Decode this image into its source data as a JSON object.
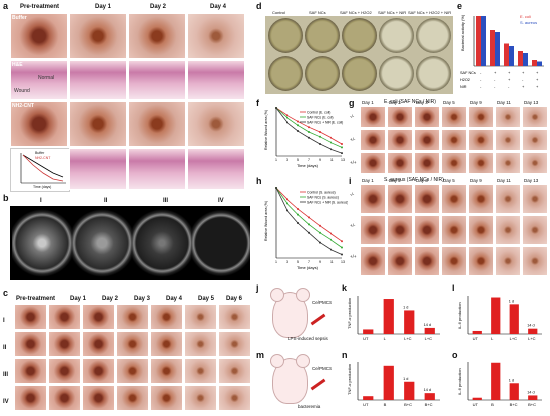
{
  "panel_labels": {
    "a": "a",
    "b": "b",
    "c": "c",
    "d": "d",
    "e": "e",
    "f": "f",
    "g": "g",
    "h": "h",
    "i": "i",
    "j": "j",
    "k": "k",
    "l": "l",
    "m": "m",
    "n": "n",
    "o": "o"
  },
  "panel_a": {
    "cols": [
      "Pre-treatment",
      "Day 1",
      "Day 2",
      "Day 4"
    ],
    "rows": [
      "Buffer",
      "H&E",
      "NH2-CNT"
    ],
    "he_labels": {
      "normal": "Normal",
      "wound": "Wound"
    },
    "inset": {
      "ylabel": "Wound area (%)",
      "xlabel": "Time (days)",
      "legend": [
        "Buffer",
        "NH2-CNT"
      ]
    }
  },
  "panel_b": {
    "labels": [
      "I",
      "II",
      "III",
      "IV"
    ]
  },
  "panel_c": {
    "cols": [
      "Pre-treatment",
      "Day 1",
      "Day 2",
      "Day 3",
      "Day 4",
      "Day 5",
      "Day 6"
    ],
    "rows": [
      "I",
      "II",
      "III",
      "IV"
    ]
  },
  "panel_d": {
    "cols": [
      "Control",
      "SAF NCs",
      "SAF NCs + H2O2",
      "SAF NCs + NIR",
      "SAF NCs + H2O2 + NIR"
    ]
  },
  "panel_e": {
    "ylabel": "Bacterial activity (%)",
    "legend": [
      "E. coli",
      "S. aureus"
    ],
    "row_labels": [
      "SAF NCs",
      "H2O2",
      "NIR"
    ],
    "marks": [
      [
        "-",
        "+",
        "+",
        "+",
        "+"
      ],
      [
        "-",
        "-",
        "+",
        "-",
        "+"
      ],
      [
        "-",
        "-",
        "-",
        "+",
        "+"
      ]
    ],
    "ecoli": [
      100,
      72,
      45,
      30,
      12
    ],
    "saureus": [
      100,
      68,
      40,
      26,
      9
    ]
  },
  "panel_f": {
    "ylabel": "Relative Wound area (%)",
    "xlabel": "Time (days)",
    "legend": [
      "Control (E. coli)",
      "SAF NCs (E. coli)",
      "SAF NCs + NIR (E. coli)"
    ],
    "x": [
      1,
      3,
      5,
      7,
      9,
      11,
      13
    ],
    "series": [
      [
        100,
        85,
        72,
        60,
        50,
        38,
        25
      ],
      [
        100,
        80,
        64,
        50,
        40,
        28,
        18
      ],
      [
        100,
        70,
        52,
        38,
        25,
        14,
        6
      ]
    ]
  },
  "panel_g": {
    "title": "E. coli (SAF NCs / NIR)",
    "cols": [
      "Day 1",
      "Day 2",
      "Day 3",
      "Day 5",
      "Day 9",
      "Day 11",
      "Day 13"
    ],
    "rows": [
      "-/-",
      "+/-",
      "+/+"
    ]
  },
  "panel_h": {
    "ylabel": "Relative Wound area (%)",
    "xlabel": "Time (days)",
    "legend": [
      "Control (S. aureus)",
      "SAF NCs (S. aureus)",
      "SAF NCs + NIR (S. aureus)"
    ],
    "x": [
      1,
      3,
      5,
      7,
      9,
      11,
      13
    ],
    "series": [
      [
        100,
        84,
        70,
        58,
        46,
        35,
        24
      ],
      [
        100,
        78,
        62,
        48,
        36,
        26,
        15
      ],
      [
        100,
        68,
        50,
        36,
        22,
        12,
        5
      ]
    ]
  },
  "panel_i": {
    "title": "S. aureus (SAF NCs / NIR)",
    "cols": [
      "Day 1",
      "Day 2",
      "Day 3",
      "Day 5",
      "Day 9",
      "Day 11",
      "Day 13"
    ],
    "rows": [
      "-/-",
      "+/-",
      "+/+"
    ]
  },
  "panel_j": {
    "drug": "Ce/PMCS",
    "disease": "LPS-induced sepsis"
  },
  "panel_k": {
    "ylabel": "TNF-α production",
    "cats": [
      "UT",
      "L",
      "L+C",
      "L+C"
    ],
    "values": [
      0.6,
      4.6,
      3.1,
      0.8
    ],
    "notes": [
      "1 d",
      "14 d"
    ]
  },
  "panel_l": {
    "ylabel": "IL-6 production",
    "cats": [
      "UT",
      "L",
      "L+C",
      "L+C"
    ],
    "values": [
      0.4,
      4.8,
      3.9,
      0.7
    ],
    "notes": [
      "1 d",
      "14 d"
    ]
  },
  "panel_m": {
    "drug": "Ce/PMCS",
    "disease": "bacteremia"
  },
  "panel_n": {
    "ylabel": "TNF-α production",
    "cats": [
      "UT",
      "B",
      "B+C",
      "B+C"
    ],
    "values": [
      0.5,
      4.5,
      2.4,
      0.9
    ],
    "notes": [
      "1 d",
      "14 d"
    ]
  },
  "panel_o": {
    "ylabel": "IL-6 production",
    "cats": [
      "UT",
      "B",
      "B+C",
      "B+C"
    ],
    "values": [
      0.3,
      4.9,
      2.2,
      0.6
    ],
    "notes": [
      "1 d",
      "14 d"
    ]
  }
}
